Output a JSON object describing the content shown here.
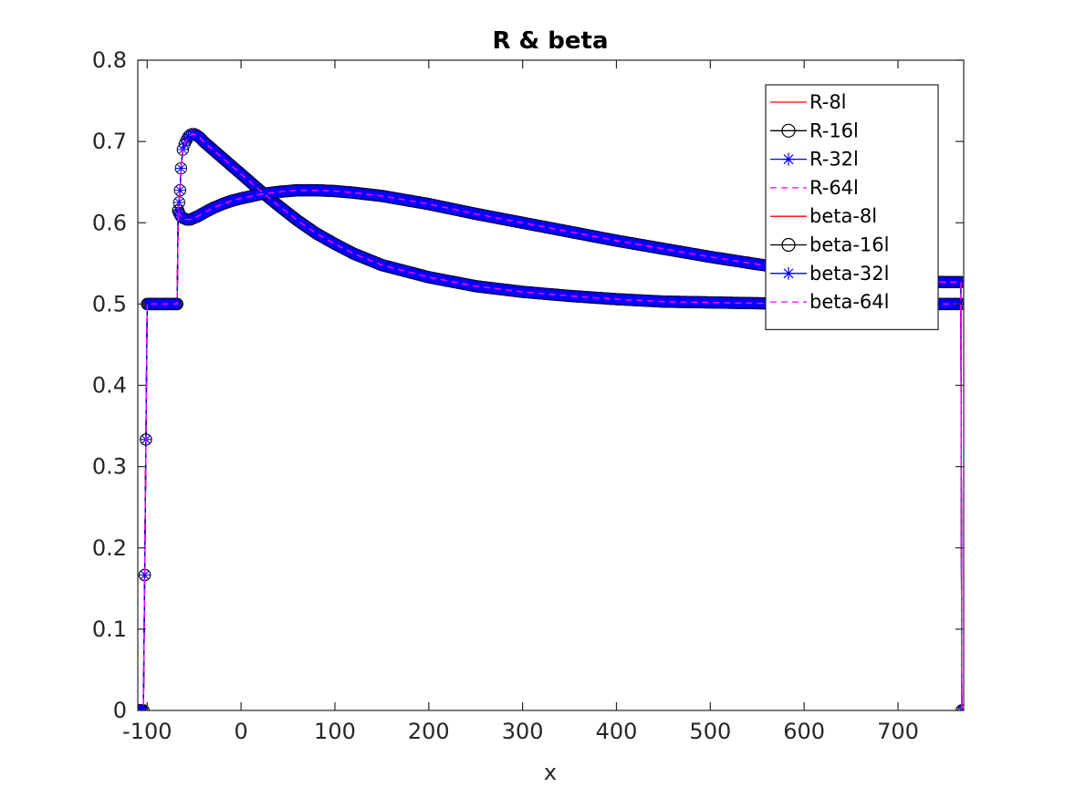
{
  "chart_data": {
    "type": "line",
    "title": "R & beta",
    "xlabel": "x",
    "ylabel": "",
    "xlim": [
      -110,
      770
    ],
    "ylim": [
      0,
      0.8
    ],
    "xticks": [
      -100,
      0,
      100,
      200,
      300,
      400,
      500,
      600,
      700
    ],
    "yticks": [
      0,
      0.1,
      0.2,
      0.3,
      0.4,
      0.5,
      0.6,
      0.7,
      0.8
    ],
    "xtick_labels": [
      "-100",
      "0",
      "100",
      "200",
      "300",
      "400",
      "500",
      "600",
      "700"
    ],
    "ytick_labels": [
      "0",
      "0.1",
      "0.2",
      "0.3",
      "0.4",
      "0.5",
      "0.6",
      "0.7",
      "0.8"
    ],
    "grid": false,
    "legend_position": "top-right",
    "curves": {
      "R": {
        "x": [
          -110,
          -106,
          -104,
          -100,
          -90,
          -80,
          -72,
          -69,
          -68,
          -67,
          -66,
          -65,
          -64,
          -62,
          -60,
          -58,
          -56,
          -54,
          -52,
          -50,
          -48,
          -44,
          -40,
          -30,
          -20,
          -10,
          0,
          20,
          40,
          60,
          80,
          100,
          120,
          150,
          200,
          250,
          300,
          350,
          400,
          450,
          500,
          550,
          600,
          650,
          700,
          750,
          765,
          767,
          768,
          770
        ],
        "y": [
          0,
          0,
          0,
          0.5,
          0.5,
          0.5,
          0.5,
          0.5,
          0.5,
          0.615,
          0.625,
          0.64,
          0.667,
          0.69,
          0.697,
          0.702,
          0.706,
          0.708,
          0.709,
          0.709,
          0.708,
          0.705,
          0.7,
          0.69,
          0.68,
          0.67,
          0.66,
          0.64,
          0.621,
          0.603,
          0.587,
          0.574,
          0.562,
          0.548,
          0.533,
          0.522,
          0.515,
          0.51,
          0.506,
          0.503,
          0.502,
          0.501,
          0.5,
          0.5,
          0.5,
          0.5,
          0.5,
          0.5,
          0,
          0
        ]
      },
      "beta": {
        "x": [
          -110,
          -106,
          -104,
          -100,
          -90,
          -80,
          -72,
          -69,
          -68,
          -67,
          -66,
          -65,
          -64,
          -62,
          -60,
          -58,
          -56,
          -54,
          -52,
          -50,
          -46,
          -40,
          -30,
          -20,
          -10,
          0,
          20,
          40,
          60,
          80,
          100,
          120,
          150,
          200,
          250,
          300,
          350,
          400,
          450,
          500,
          550,
          600,
          650,
          700,
          750,
          765,
          767,
          768,
          770
        ],
        "y": [
          0,
          0,
          0,
          0.5,
          0.5,
          0.5,
          0.5,
          0.5,
          0.5,
          0.615,
          0.612,
          0.61,
          0.608,
          0.606,
          0.605,
          0.604,
          0.604,
          0.604,
          0.605,
          0.606,
          0.608,
          0.612,
          0.618,
          0.623,
          0.627,
          0.63,
          0.635,
          0.638,
          0.64,
          0.64,
          0.639,
          0.637,
          0.633,
          0.623,
          0.611,
          0.6,
          0.589,
          0.578,
          0.568,
          0.558,
          0.549,
          0.541,
          0.534,
          0.529,
          0.527,
          0.527,
          0.527,
          0,
          0
        ]
      }
    },
    "series": [
      {
        "name": "R-8l",
        "curve": "R",
        "color": "#ff0000",
        "line": "solid",
        "marker": "none"
      },
      {
        "name": "R-16l",
        "curve": "R",
        "color": "#000000",
        "line": "solid",
        "marker": "circle"
      },
      {
        "name": "R-32l",
        "curve": "R",
        "color": "#0000ff",
        "line": "solid",
        "marker": "star"
      },
      {
        "name": "R-64l",
        "curve": "R",
        "color": "#ff00ff",
        "line": "dashed",
        "marker": "none"
      },
      {
        "name": "beta-8l",
        "curve": "beta",
        "color": "#ff0000",
        "line": "solid",
        "marker": "none"
      },
      {
        "name": "beta-16l",
        "curve": "beta",
        "color": "#000000",
        "line": "solid",
        "marker": "circle"
      },
      {
        "name": "beta-32l",
        "curve": "beta",
        "color": "#0000ff",
        "line": "solid",
        "marker": "star"
      },
      {
        "name": "beta-64l",
        "curve": "beta",
        "color": "#ff00ff",
        "line": "dashed",
        "marker": "none"
      }
    ]
  }
}
